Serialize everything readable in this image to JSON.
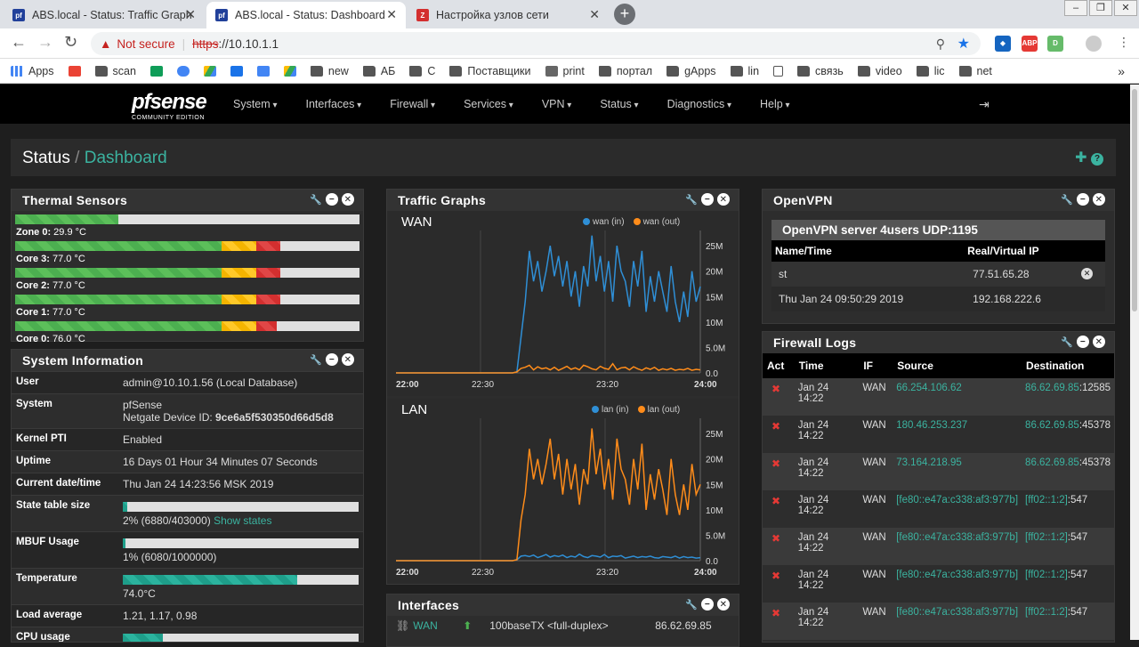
{
  "browser": {
    "tabs": [
      {
        "label": "ABS.local - Status: Traffic Graph",
        "fav": "pf",
        "favcolor": "#21409a",
        "active": false
      },
      {
        "label": "ABS.local - Status: Dashboard",
        "fav": "pf",
        "favcolor": "#21409a",
        "active": true
      },
      {
        "label": "Настройка узлов сети",
        "fav": "Z",
        "favcolor": "#d32f2f",
        "active": false
      }
    ],
    "not_secure": "Not secure",
    "url_scheme": "https",
    "url_rest": "://10.10.1.1",
    "ext_abp": "ABP",
    "ext_d": "D",
    "bookmarks": [
      "Apps",
      "",
      "scan",
      "",
      "",
      "",
      "",
      "",
      "",
      "new",
      "АБ",
      "С",
      "Поставщики",
      "print",
      "портал",
      "gApps",
      "lin",
      "",
      "связь",
      "video",
      "lic",
      "net"
    ]
  },
  "nav": {
    "logo_main": "pfsense",
    "logo_sub": "COMMUNITY EDITION",
    "menu": [
      "System",
      "Interfaces",
      "Firewall",
      "Services",
      "VPN",
      "Status",
      "Diagnostics",
      "Help"
    ]
  },
  "page": {
    "crumb1": "Status",
    "crumb2": "Dashboard",
    "tools": "+ ?"
  },
  "thermal": {
    "title": "Thermal Sensors",
    "sensors": [
      {
        "label": "Zone 0:",
        "value": "29.9 °C",
        "pct": 29.9
      },
      {
        "label": "Core 3:",
        "value": "77.0 °C",
        "pct": 77.0
      },
      {
        "label": "Core 2:",
        "value": "77.0 °C",
        "pct": 77.0
      },
      {
        "label": "Core 1:",
        "value": "77.0 °C",
        "pct": 77.0
      },
      {
        "label": "Core 0:",
        "value": "76.0 °C",
        "pct": 76.0
      }
    ]
  },
  "sysinfo": {
    "title": "System Information",
    "rows": [
      {
        "k": "User",
        "v": "admin@10.10.1.56 (Local Database)"
      },
      {
        "k": "System",
        "v": "pfSense",
        "v2": "Netgate Device ID: ",
        "v2b": "9ce6a5f530350d66d5d8"
      },
      {
        "k": "Kernel PTI",
        "v": "Enabled"
      },
      {
        "k": "Uptime",
        "v": "16 Days 01 Hour 34 Minutes 07 Seconds"
      },
      {
        "k": "Current date/time",
        "v": "Thu Jan 24 14:23:56 MSK 2019"
      },
      {
        "k": "State table size",
        "v": "2% (6880/403000)",
        "link": "Show states",
        "pct": 2
      },
      {
        "k": "MBUF Usage",
        "v": "1% (6080/1000000)",
        "pct": 1
      },
      {
        "k": "Temperature",
        "v": "74.0°C",
        "pct": 74
      },
      {
        "k": "Load average",
        "v": "1.21, 1.17, 0.98"
      },
      {
        "k": "CPU usage",
        "v": "",
        "pct": 17
      }
    ]
  },
  "traffic": {
    "title": "Traffic Graphs",
    "graphs": [
      {
        "name": "WAN",
        "legend_in": "wan (in)",
        "legend_out": "wan (out)",
        "y_ticks": [
          "25M",
          "20M",
          "15M",
          "10M",
          "5.0M",
          "0.0"
        ],
        "x_ticks": [
          "22:00",
          "22:30",
          "23:20",
          "24:00"
        ],
        "in": [
          0,
          0,
          0,
          0,
          0,
          0,
          0,
          0,
          0,
          0,
          0,
          0,
          0,
          0,
          0,
          0,
          0,
          0,
          0,
          0,
          0,
          0,
          0,
          0,
          0,
          0,
          0,
          0,
          0,
          0.2,
          7,
          14,
          24,
          18,
          22,
          16,
          20,
          25,
          19,
          23,
          17,
          22,
          15,
          20,
          13,
          21,
          17,
          27,
          18,
          23,
          16,
          22,
          14,
          25,
          20,
          18,
          13,
          22,
          17,
          24,
          12,
          19,
          14,
          20,
          16,
          12,
          21,
          14,
          10,
          16,
          11,
          20,
          14,
          17
        ],
        "out": [
          0,
          0,
          0,
          0,
          0,
          0,
          0,
          0,
          0,
          0,
          0,
          0,
          0,
          0,
          0,
          0,
          0,
          0,
          0,
          0,
          0,
          0,
          0,
          0,
          0,
          0,
          0,
          0,
          0,
          0.2,
          0.9,
          1.1,
          1.5,
          0.6,
          1.2,
          0.8,
          1.0,
          0.6,
          1.1,
          0.5,
          0.9,
          1.3,
          0.7,
          1.0,
          0.6,
          1.5,
          1.2,
          0.8,
          0.6,
          1.3,
          0.9,
          0.7,
          1.8,
          0.6,
          1.0,
          1.1,
          0.6,
          1.2,
          0.8,
          0.5,
          1.0,
          0.7,
          1.1,
          0.5,
          0.8,
          0.6,
          0.9,
          0.5,
          0.7,
          0.6,
          0.9,
          0.5,
          0.7,
          0.6
        ]
      },
      {
        "name": "LAN",
        "legend_in": "lan (in)",
        "legend_out": "lan (out)",
        "y_ticks": [
          "25M",
          "20M",
          "15M",
          "10M",
          "5.0M",
          "0.0"
        ],
        "x_ticks": [
          "22:00",
          "22:30",
          "23:20",
          "24:00"
        ],
        "in": [
          0,
          0,
          0,
          0,
          0,
          0,
          0,
          0,
          0,
          0,
          0,
          0,
          0,
          0,
          0,
          0,
          0,
          0,
          0,
          0,
          0,
          0,
          0,
          0,
          0,
          0,
          0,
          0,
          0,
          0.2,
          0.9,
          1.0,
          0.8,
          1.1,
          0.6,
          0.9,
          1.2,
          0.7,
          1.0,
          0.8,
          1.1,
          0.6,
          0.9,
          0.7,
          1.3,
          0.8,
          0.6,
          1.0,
          0.9,
          0.7,
          1.2,
          0.6,
          0.9,
          0.8,
          1.0,
          0.5,
          0.7,
          0.9,
          0.6,
          0.8,
          0.7,
          0.9,
          0.6,
          0.5,
          0.8,
          0.7,
          0.6,
          0.9,
          0.5,
          0.8,
          0.6,
          0.7,
          0.5,
          0.6
        ],
        "out": [
          0,
          0,
          0,
          0,
          0,
          0,
          0,
          0,
          0,
          0,
          0,
          0,
          0,
          0,
          0,
          0,
          0,
          0,
          0,
          0,
          0,
          0,
          0,
          0,
          0,
          0,
          0,
          0,
          0,
          0.2,
          8,
          13,
          22,
          16,
          20,
          15,
          19,
          24,
          16,
          21,
          13,
          20,
          14,
          19,
          11,
          18,
          15,
          26,
          17,
          22,
          14,
          20,
          12,
          24,
          18,
          16,
          11,
          20,
          14,
          23,
          10,
          17,
          12,
          18,
          14,
          9,
          20,
          13,
          9,
          15,
          10,
          19,
          13,
          15
        ]
      }
    ]
  },
  "interfaces": {
    "title": "Interfaces",
    "rows": [
      {
        "name": "WAN",
        "media": "100baseTX <full-duplex>",
        "ip": "86.62.69.85"
      }
    ]
  },
  "openvpn": {
    "title": "OpenVPN",
    "server": "OpenVPN server 4users UDP:1195",
    "col1": "Name/Time",
    "col2": "Real/Virtual IP",
    "rows": [
      {
        "a": "st",
        "b": "77.51.65.28"
      },
      {
        "a": "Thu Jan 24 09:50:29 2019",
        "b": "192.168.222.6"
      }
    ]
  },
  "fwlogs": {
    "title": "Firewall Logs",
    "cols": [
      "Act",
      "Time",
      "IF",
      "Source",
      "Destination"
    ],
    "rows": [
      {
        "time": "Jan 24 14:22",
        "if": "WAN",
        "src": "66.254.106.62",
        "dst": "86.62.69.85",
        "port": ":12585"
      },
      {
        "time": "Jan 24 14:22",
        "if": "WAN",
        "src": "180.46.253.237",
        "dst": "86.62.69.85",
        "port": ":45378"
      },
      {
        "time": "Jan 24 14:22",
        "if": "WAN",
        "src": "73.164.218.95",
        "dst": "86.62.69.85",
        "port": ":45378"
      },
      {
        "time": "Jan 24 14:22",
        "if": "WAN",
        "src": "[fe80::e47a:c338:af3:977b]",
        "dst": "[ff02::1:2]",
        "port": ":547"
      },
      {
        "time": "Jan 24 14:22",
        "if": "WAN",
        "src": "[fe80::e47a:c338:af3:977b]",
        "dst": "[ff02::1:2]",
        "port": ":547"
      },
      {
        "time": "Jan 24 14:22",
        "if": "WAN",
        "src": "[fe80::e47a:c338:af3:977b]",
        "dst": "[ff02::1:2]",
        "port": ":547"
      },
      {
        "time": "Jan 24 14:22",
        "if": "WAN",
        "src": "[fe80::e47a:c338:af3:977b]",
        "dst": "[ff02::1:2]",
        "port": ":547"
      }
    ]
  },
  "colors": {
    "accent": "#3bb3a0",
    "wan_in": "#2f8fd6",
    "wan_out": "#ff8c1a"
  }
}
